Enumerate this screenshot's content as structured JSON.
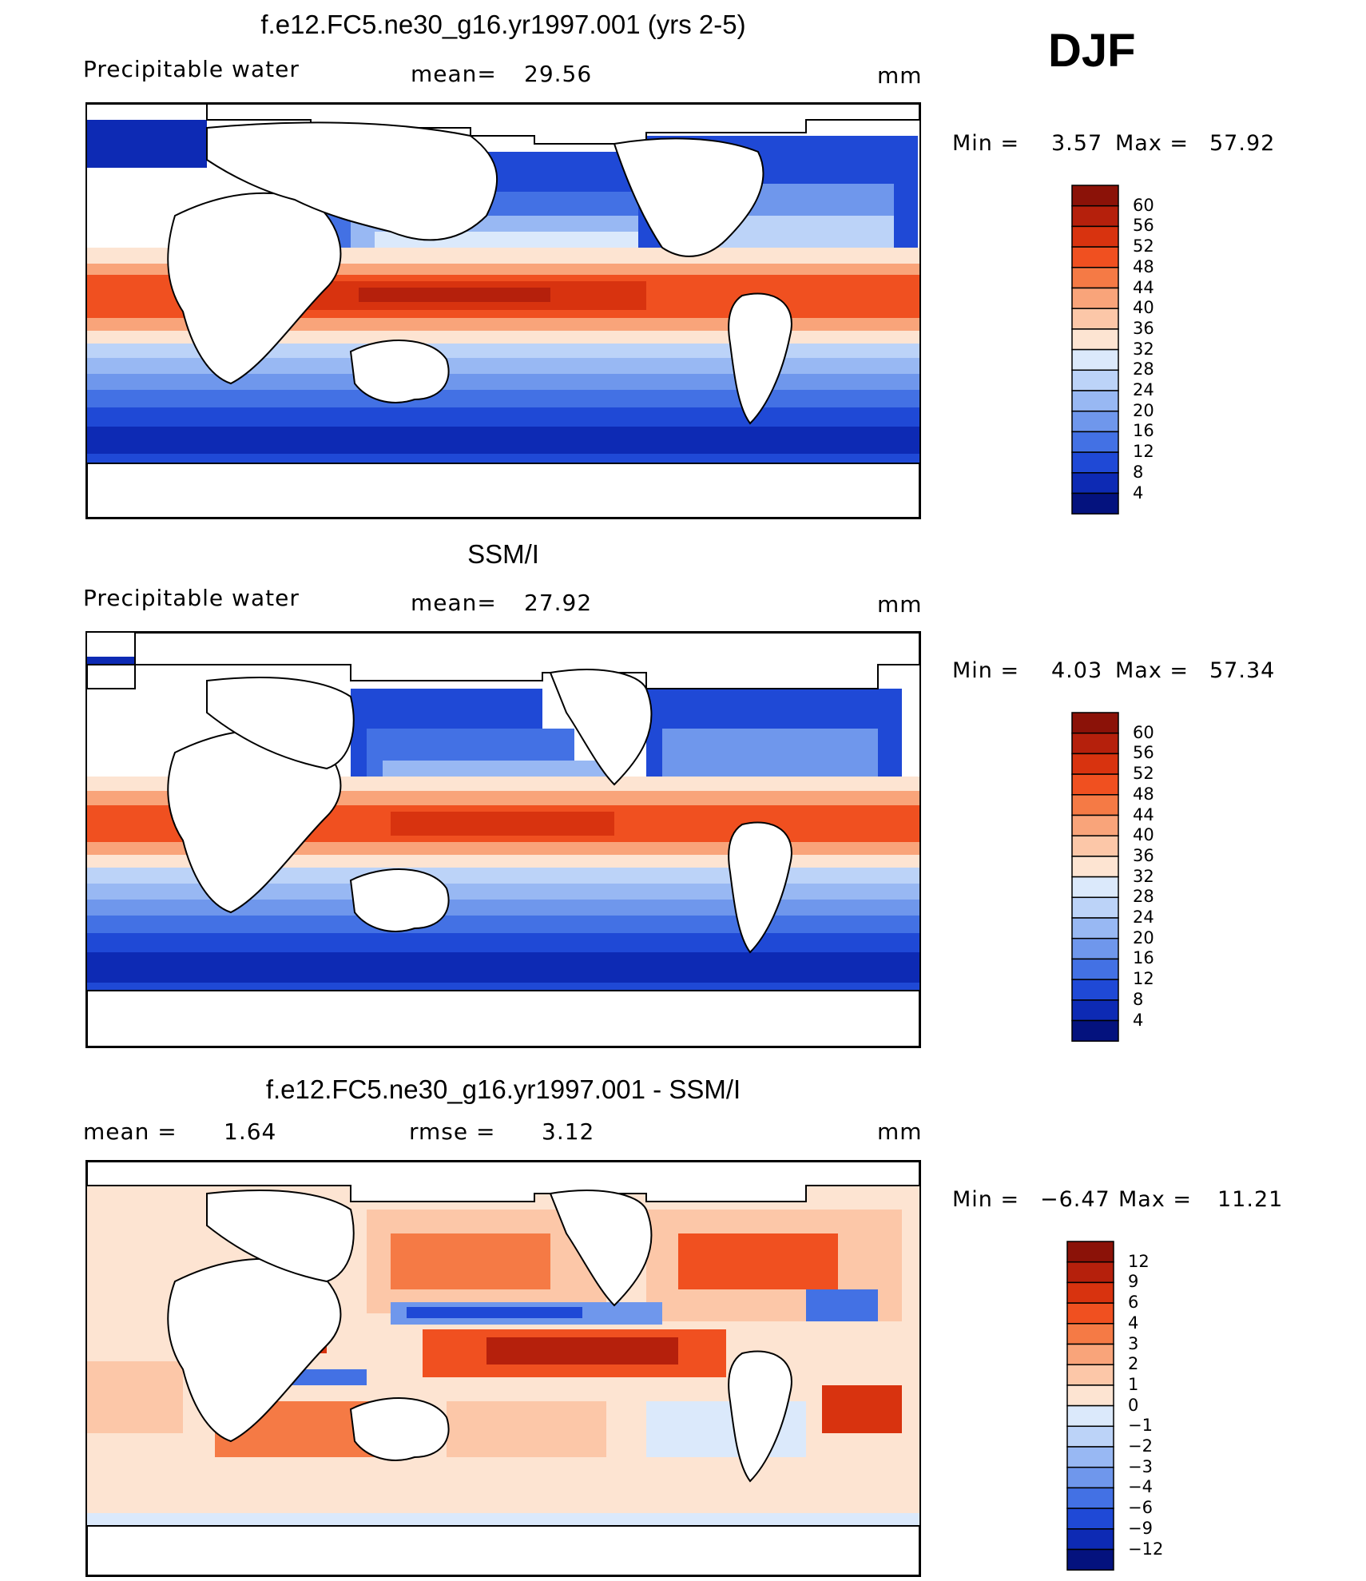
{
  "season": "DJF",
  "chart_data": [
    {
      "type": "heatmap",
      "title": "f.e12.FC5.ne30_g16.yr1997.001 (yrs 2-5)",
      "variable": "Precipitable water",
      "mean_label": "mean=",
      "mean_value": "29.56",
      "units": "mm",
      "min_label": "Min =",
      "min_value": "3.57",
      "max_label": "Max =",
      "max_value": "57.92",
      "colorbar": {
        "levels": [
          60,
          56,
          52,
          48,
          44,
          40,
          36,
          32,
          28,
          24,
          20,
          16,
          12,
          8,
          4
        ],
        "level_labels": [
          "60",
          "56",
          "52",
          "48",
          "44",
          "40",
          "36",
          "32",
          "28",
          "24",
          "20",
          "16",
          "12",
          "8",
          "4"
        ],
        "colors": [
          "#8b1208",
          "#b5200c",
          "#d8330f",
          "#f05020",
          "#f57a45",
          "#f9a47a",
          "#fcc7a8",
          "#fde4d2",
          "#dbe9fb",
          "#bcd3f8",
          "#98b8f3",
          "#6f97ec",
          "#4371e4",
          "#1f49d6",
          "#0d2ab4",
          "#04127e"
        ]
      },
      "ylim": [
        4,
        60
      ]
    },
    {
      "type": "heatmap",
      "title": "SSM/I",
      "variable": "Precipitable water",
      "mean_label": "mean=",
      "mean_value": "27.92",
      "units": "mm",
      "min_label": "Min =",
      "min_value": "4.03",
      "max_label": "Max =",
      "max_value": "57.34",
      "colorbar": {
        "levels": [
          60,
          56,
          52,
          48,
          44,
          40,
          36,
          32,
          28,
          24,
          20,
          16,
          12,
          8,
          4
        ],
        "level_labels": [
          "60",
          "56",
          "52",
          "48",
          "44",
          "40",
          "36",
          "32",
          "28",
          "24",
          "20",
          "16",
          "12",
          "8",
          "4"
        ],
        "colors": [
          "#8b1208",
          "#b5200c",
          "#d8330f",
          "#f05020",
          "#f57a45",
          "#f9a47a",
          "#fcc7a8",
          "#fde4d2",
          "#dbe9fb",
          "#bcd3f8",
          "#98b8f3",
          "#6f97ec",
          "#4371e4",
          "#1f49d6",
          "#0d2ab4",
          "#04127e"
        ]
      },
      "ylim": [
        4,
        60
      ]
    },
    {
      "type": "heatmap",
      "title": "f.e12.FC5.ne30_g16.yr1997.001 - SSM/I",
      "variable": "",
      "mean_label": "mean =",
      "mean_value": "1.64",
      "rmse_label": "rmse =",
      "rmse_value": "3.12",
      "units": "mm",
      "min_label": "Min =",
      "min_value": "−6.47",
      "max_label": "Max =",
      "max_value": "11.21",
      "colorbar": {
        "levels": [
          12,
          9,
          6,
          4,
          3,
          2,
          1,
          0,
          -1,
          -2,
          -3,
          -4,
          -6,
          -9,
          -12
        ],
        "level_labels": [
          "12",
          "9",
          "6",
          "4",
          "3",
          "2",
          "1",
          "0",
          "−1",
          "−2",
          "−3",
          "−4",
          "−6",
          "−9",
          "−12"
        ],
        "colors": [
          "#8b1208",
          "#b5200c",
          "#d8330f",
          "#f05020",
          "#f57a45",
          "#f9a47a",
          "#fcc7a8",
          "#fde4d2",
          "#dbe9fb",
          "#bcd3f8",
          "#98b8f3",
          "#6f97ec",
          "#4371e4",
          "#1f49d6",
          "#0d2ab4",
          "#04127e"
        ]
      },
      "ylim": [
        -12,
        12
      ]
    }
  ]
}
